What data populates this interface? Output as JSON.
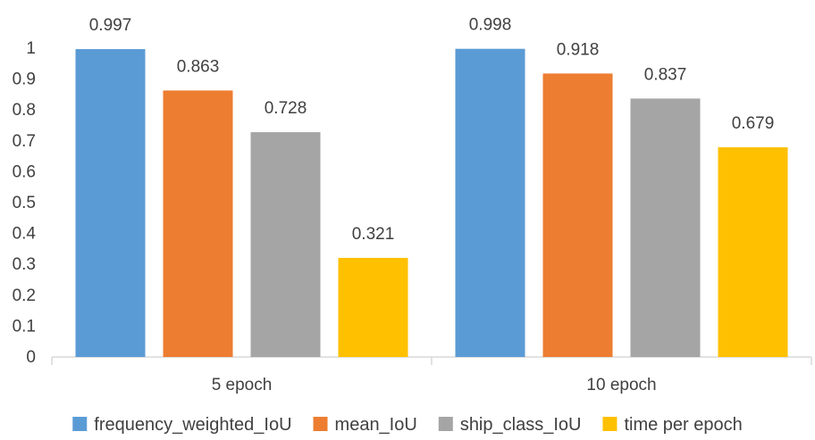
{
  "chart_data": {
    "type": "bar",
    "categories": [
      "5 epoch",
      "10 epoch"
    ],
    "series": [
      {
        "name": "frequency_weighted_IoU",
        "values": [
          0.997,
          0.998
        ],
        "color": "#5b9bd5"
      },
      {
        "name": "mean_IoU",
        "values": [
          0.863,
          0.918
        ],
        "color": "#ed7d31"
      },
      {
        "name": "ship_class_IoU",
        "values": [
          0.728,
          0.837
        ],
        "color": "#a5a5a5"
      },
      {
        "name": "time per epoch",
        "values": [
          0.321,
          0.679
        ],
        "color": "#ffc000"
      }
    ],
    "data_labels": [
      [
        "0.997",
        "0.998"
      ],
      [
        "0.863",
        "0.918"
      ],
      [
        "0.728",
        "0.837"
      ],
      [
        "0.321",
        "0.679"
      ]
    ],
    "y_ticks": [
      "0",
      "0.1",
      "0.2",
      "0.3",
      "0.4",
      "0.5",
      "0.6",
      "0.7",
      "0.8",
      "0.9",
      "1"
    ],
    "ylim": [
      0,
      1
    ],
    "grid": false,
    "legend_position": "bottom",
    "title": "",
    "xlabel": "",
    "ylabel": ""
  }
}
